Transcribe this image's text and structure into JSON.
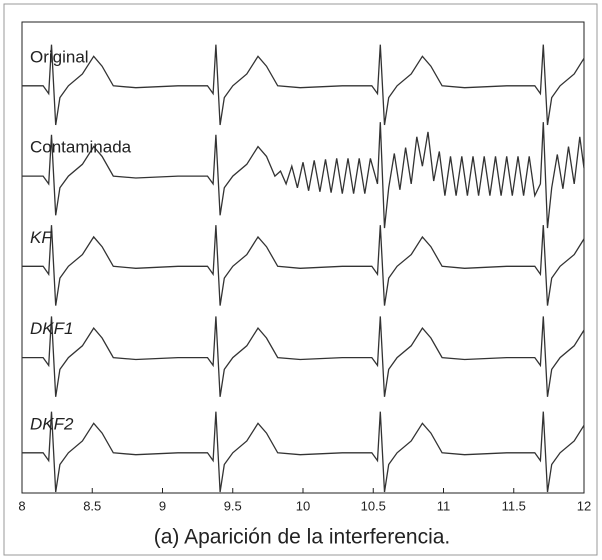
{
  "chart_data": {
    "type": "line",
    "caption": "(a) Aparición de la interferencia.",
    "xlim": [
      8,
      12
    ],
    "xticks": [
      8,
      8.5,
      9,
      9.5,
      10,
      10.5,
      11,
      11.5,
      12
    ],
    "ylim": [
      0,
      4.8
    ],
    "color": "#333333",
    "x": [
      8.0,
      8.15,
      8.19,
      8.21,
      8.24,
      8.27,
      8.33,
      8.43,
      8.51,
      8.57,
      8.65,
      8.81,
      9.11,
      9.32,
      9.36,
      9.38,
      9.41,
      9.44,
      9.5,
      9.6,
      9.68,
      9.74,
      9.82,
      9.98,
      10.28,
      10.49,
      10.53,
      10.55,
      10.58,
      10.61,
      10.67,
      10.77,
      10.85,
      10.91,
      10.99,
      11.15,
      11.45,
      11.65,
      11.69,
      11.71,
      11.74,
      11.77,
      11.83,
      11.93,
      12.0
    ],
    "series": [
      {
        "name": "Original",
        "values": [
          4.15,
          4.15,
          4.07,
          4.57,
          3.75,
          4.03,
          4.15,
          4.27,
          4.45,
          4.35,
          4.15,
          4.13,
          4.15,
          4.15,
          4.07,
          4.57,
          3.75,
          4.03,
          4.15,
          4.27,
          4.45,
          4.35,
          4.15,
          4.13,
          4.15,
          4.15,
          4.07,
          4.57,
          3.75,
          4.03,
          4.15,
          4.27,
          4.45,
          4.35,
          4.15,
          4.13,
          4.15,
          4.15,
          4.07,
          4.57,
          3.75,
          4.03,
          4.15,
          4.27,
          4.43
        ]
      },
      {
        "name": "Contaminada",
        "x": [
          8.0,
          8.15,
          8.19,
          8.21,
          8.24,
          8.27,
          8.33,
          8.43,
          8.51,
          8.57,
          8.65,
          8.81,
          9.11,
          9.32,
          9.36,
          9.38,
          9.41,
          9.44,
          9.5,
          9.6,
          9.68,
          9.74,
          9.8,
          9.84,
          9.88,
          9.92,
          9.96,
          10.0,
          10.04,
          10.08,
          10.12,
          10.16,
          10.2,
          10.24,
          10.28,
          10.32,
          10.36,
          10.4,
          10.44,
          10.48,
          10.53,
          10.55,
          10.58,
          10.61,
          10.65,
          10.69,
          10.73,
          10.77,
          10.81,
          10.85,
          10.89,
          10.93,
          10.97,
          11.01,
          11.05,
          11.09,
          11.13,
          11.17,
          11.21,
          11.25,
          11.29,
          11.33,
          11.37,
          11.41,
          11.45,
          11.49,
          11.53,
          11.57,
          11.61,
          11.65,
          11.69,
          11.71,
          11.74,
          11.77,
          11.81,
          11.85,
          11.89,
          11.93,
          11.97,
          12.0
        ],
        "values": [
          3.23,
          3.23,
          3.15,
          3.65,
          2.83,
          3.11,
          3.23,
          3.35,
          3.53,
          3.43,
          3.23,
          3.21,
          3.23,
          3.23,
          3.15,
          3.65,
          2.83,
          3.11,
          3.23,
          3.35,
          3.53,
          3.43,
          3.23,
          3.28,
          3.15,
          3.33,
          3.11,
          3.37,
          3.08,
          3.39,
          3.07,
          3.4,
          3.06,
          3.41,
          3.05,
          3.41,
          3.05,
          3.41,
          3.05,
          3.41,
          3.15,
          3.78,
          2.7,
          3.11,
          3.46,
          3.09,
          3.52,
          3.15,
          3.63,
          3.33,
          3.68,
          3.18,
          3.48,
          3.03,
          3.43,
          3.03,
          3.43,
          3.03,
          3.43,
          3.03,
          3.43,
          3.03,
          3.43,
          3.03,
          3.43,
          3.03,
          3.43,
          3.03,
          3.43,
          3.03,
          3.15,
          3.78,
          2.7,
          3.11,
          3.45,
          3.1,
          3.53,
          3.15,
          3.63,
          3.31
        ]
      },
      {
        "name": "KF",
        "values": [
          2.31,
          2.31,
          2.23,
          2.73,
          1.91,
          2.19,
          2.31,
          2.43,
          2.61,
          2.51,
          2.31,
          2.29,
          2.31,
          2.31,
          2.23,
          2.73,
          1.91,
          2.19,
          2.31,
          2.43,
          2.61,
          2.51,
          2.31,
          2.29,
          2.31,
          2.31,
          2.23,
          2.73,
          1.91,
          2.19,
          2.31,
          2.43,
          2.61,
          2.51,
          2.31,
          2.29,
          2.31,
          2.31,
          2.23,
          2.73,
          1.91,
          2.19,
          2.31,
          2.43,
          2.59
        ]
      },
      {
        "name": "DKF1",
        "values": [
          1.38,
          1.38,
          1.3,
          1.8,
          0.98,
          1.26,
          1.38,
          1.5,
          1.68,
          1.58,
          1.38,
          1.36,
          1.38,
          1.38,
          1.3,
          1.8,
          0.98,
          1.26,
          1.38,
          1.5,
          1.68,
          1.58,
          1.38,
          1.36,
          1.38,
          1.38,
          1.3,
          1.8,
          0.98,
          1.26,
          1.38,
          1.5,
          1.68,
          1.58,
          1.38,
          1.36,
          1.38,
          1.38,
          1.3,
          1.8,
          0.98,
          1.26,
          1.38,
          1.5,
          1.66
        ]
      },
      {
        "name": "DKF2",
        "values": [
          0.41,
          0.41,
          0.33,
          0.83,
          0.01,
          0.29,
          0.41,
          0.53,
          0.71,
          0.61,
          0.41,
          0.39,
          0.41,
          0.41,
          0.33,
          0.83,
          0.01,
          0.29,
          0.41,
          0.53,
          0.71,
          0.61,
          0.41,
          0.39,
          0.41,
          0.41,
          0.33,
          0.83,
          0.01,
          0.29,
          0.41,
          0.53,
          0.71,
          0.61,
          0.41,
          0.39,
          0.41,
          0.41,
          0.33,
          0.83,
          0.01,
          0.29,
          0.41,
          0.53,
          0.69
        ]
      }
    ]
  }
}
